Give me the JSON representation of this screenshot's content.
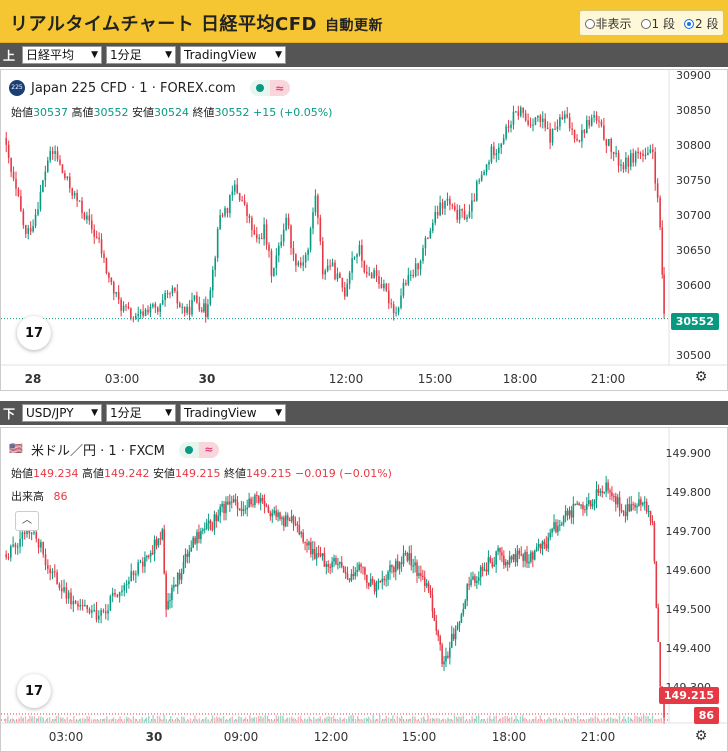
{
  "header": {
    "title": "リアルタイムチャート 日経平均CFD",
    "subtitle": "自動更新",
    "modes": [
      {
        "label": "非表示",
        "checked": false
      },
      {
        "label": "1 段",
        "checked": false
      },
      {
        "label": "2 段",
        "checked": true
      }
    ]
  },
  "panel1": {
    "toolbar": {
      "icon": "上",
      "symbol": "日経平均",
      "interval": "1分足",
      "provider": "TradingView"
    },
    "legend": {
      "badge": "225",
      "name": "Japan 225 CFD · 1 · FOREX.com"
    },
    "ohlc": {
      "open_label": "始値",
      "open": "30537",
      "high_label": "高値",
      "high": "30552",
      "low_label": "安値",
      "low": "30524",
      "close_label": "終値",
      "close": "30552",
      "change": "+15 (+0.05%)"
    },
    "last_price": "30552",
    "tv_logo": "17",
    "pill_icon": "≈",
    "colors": {
      "up": "#089981",
      "down": "#e53946"
    },
    "chart_data": {
      "type": "candlestick",
      "y_ticks": [
        "30900",
        "30850",
        "30800",
        "30750",
        "30700",
        "30650",
        "30600",
        "30550",
        "30500"
      ],
      "ylim": [
        30500,
        30900
      ],
      "x_ticks": [
        "28",
        "03:00",
        "30",
        "12:00",
        "15:00",
        "18:00",
        "21:00"
      ],
      "path": [
        [
          0,
          30810
        ],
        [
          2,
          30760
        ],
        [
          4,
          30720
        ],
        [
          6,
          30670
        ],
        [
          8,
          30690
        ],
        [
          10,
          30730
        ],
        [
          12,
          30780
        ],
        [
          14,
          30790
        ],
        [
          16,
          30760
        ],
        [
          18,
          30740
        ],
        [
          20,
          30720
        ],
        [
          22,
          30700
        ],
        [
          24,
          30680
        ],
        [
          26,
          30660
        ],
        [
          28,
          30620
        ],
        [
          30,
          30590
        ],
        [
          32,
          30570
        ],
        [
          34,
          30560
        ],
        [
          36,
          30550
        ],
        [
          38,
          30560
        ],
        [
          40,
          30570
        ],
        [
          42,
          30560
        ],
        [
          44,
          30580
        ],
        [
          46,
          30590
        ],
        [
          48,
          30570
        ],
        [
          50,
          30560
        ],
        [
          52,
          30580
        ],
        [
          54,
          30570
        ],
        [
          55,
          30560
        ],
        [
          57,
          30620
        ],
        [
          59,
          30700
        ],
        [
          61,
          30710
        ],
        [
          63,
          30740
        ],
        [
          65,
          30720
        ],
        [
          67,
          30690
        ],
        [
          69,
          30660
        ],
        [
          71,
          30680
        ],
        [
          73,
          30620
        ],
        [
          75,
          30650
        ],
        [
          77,
          30700
        ],
        [
          79,
          30640
        ],
        [
          81,
          30630
        ],
        [
          83,
          30650
        ],
        [
          85,
          30730
        ],
        [
          87,
          30620
        ],
        [
          89,
          30630
        ],
        [
          91,
          30610
        ],
        [
          93,
          30590
        ],
        [
          95,
          30640
        ],
        [
          97,
          30650
        ],
        [
          99,
          30610
        ],
        [
          101,
          30620
        ],
        [
          103,
          30600
        ],
        [
          105,
          30580
        ],
        [
          107,
          30560
        ],
        [
          109,
          30600
        ],
        [
          111,
          30610
        ],
        [
          113,
          30630
        ],
        [
          115,
          30660
        ],
        [
          117,
          30690
        ],
        [
          119,
          30710
        ],
        [
          121,
          30720
        ],
        [
          123,
          30700
        ],
        [
          125,
          30700
        ],
        [
          127,
          30700
        ],
        [
          129,
          30740
        ],
        [
          131,
          30760
        ],
        [
          133,
          30790
        ],
        [
          135,
          30800
        ],
        [
          137,
          30820
        ],
        [
          139,
          30840
        ],
        [
          141,
          30850
        ],
        [
          143,
          30830
        ],
        [
          145,
          30840
        ],
        [
          147,
          30830
        ],
        [
          149,
          30810
        ],
        [
          151,
          30830
        ],
        [
          153,
          30840
        ],
        [
          155,
          30820
        ],
        [
          157,
          30810
        ],
        [
          159,
          30830
        ],
        [
          161,
          30840
        ],
        [
          163,
          30820
        ],
        [
          165,
          30800
        ],
        [
          167,
          30780
        ],
        [
          169,
          30770
        ],
        [
          171,
          30780
        ],
        [
          173,
          30790
        ],
        [
          175,
          30780
        ],
        [
          177,
          30790
        ],
        [
          179,
          30680
        ],
        [
          180,
          30550
        ]
      ]
    }
  },
  "panel2": {
    "toolbar": {
      "icon": "下",
      "symbol": "USD/JPY",
      "interval": "1分足",
      "provider": "TradingView"
    },
    "legend": {
      "name": "米ドル／円 · 1 · FXCM"
    },
    "ohlc": {
      "open_label": "始値",
      "open": "149.234",
      "high_label": "高値",
      "high": "149.242",
      "low_label": "安値",
      "low": "149.215",
      "close_label": "終値",
      "close": "149.215",
      "change": "−0.019 (−0.01%)"
    },
    "volume": {
      "label": "出来高",
      "value": "86"
    },
    "last_price": "149.215",
    "last_volume": "86",
    "tv_logo": "17",
    "pill_icon": "≈",
    "chart_data": {
      "type": "candlestick",
      "y_ticks": [
        "149.900",
        "149.800",
        "149.700",
        "149.600",
        "149.500",
        "149.400",
        "149.300"
      ],
      "ylim": [
        149.22,
        149.92
      ],
      "x_ticks": [
        "03:00",
        "30",
        "09:00",
        "12:00",
        "15:00",
        "18:00",
        "21:00"
      ],
      "path": [
        [
          0,
          149.64
        ],
        [
          3,
          149.66
        ],
        [
          6,
          149.7
        ],
        [
          9,
          149.67
        ],
        [
          12,
          149.6
        ],
        [
          15,
          149.55
        ],
        [
          18,
          149.52
        ],
        [
          21,
          149.5
        ],
        [
          24,
          149.48
        ],
        [
          27,
          149.51
        ],
        [
          30,
          149.55
        ],
        [
          33,
          149.58
        ],
        [
          36,
          149.62
        ],
        [
          38,
          149.65
        ],
        [
          40,
          149.68
        ],
        [
          41,
          149.7
        ],
        [
          42,
          149.5
        ],
        [
          44,
          149.55
        ],
        [
          46,
          149.6
        ],
        [
          48,
          149.65
        ],
        [
          50,
          149.68
        ],
        [
          52,
          149.7
        ],
        [
          54,
          149.72
        ],
        [
          56,
          149.75
        ],
        [
          58,
          149.76
        ],
        [
          60,
          149.78
        ],
        [
          62,
          149.76
        ],
        [
          64,
          149.77
        ],
        [
          66,
          149.78
        ],
        [
          68,
          149.76
        ],
        [
          70,
          149.74
        ],
        [
          72,
          149.72
        ],
        [
          74,
          149.73
        ],
        [
          76,
          149.7
        ],
        [
          78,
          149.68
        ],
        [
          80,
          149.64
        ],
        [
          82,
          149.63
        ],
        [
          84,
          149.62
        ],
        [
          86,
          149.63
        ],
        [
          88,
          149.61
        ],
        [
          90,
          149.58
        ],
        [
          92,
          149.6
        ],
        [
          94,
          149.58
        ],
        [
          96,
          149.56
        ],
        [
          98,
          149.58
        ],
        [
          100,
          149.6
        ],
        [
          102,
          149.62
        ],
        [
          104,
          149.64
        ],
        [
          106,
          149.62
        ],
        [
          108,
          149.58
        ],
        [
          110,
          149.55
        ],
        [
          112,
          149.45
        ],
        [
          114,
          149.35
        ],
        [
          116,
          149.42
        ],
        [
          118,
          149.48
        ],
        [
          120,
          149.55
        ],
        [
          122,
          149.58
        ],
        [
          124,
          149.6
        ],
        [
          126,
          149.62
        ],
        [
          128,
          149.64
        ],
        [
          130,
          149.62
        ],
        [
          132,
          149.63
        ],
        [
          134,
          149.64
        ],
        [
          136,
          149.63
        ],
        [
          138,
          149.65
        ],
        [
          140,
          149.66
        ],
        [
          142,
          149.7
        ],
        [
          144,
          149.72
        ],
        [
          146,
          149.74
        ],
        [
          148,
          149.76
        ],
        [
          150,
          149.75
        ],
        [
          152,
          149.78
        ],
        [
          154,
          149.8
        ],
        [
          156,
          149.82
        ],
        [
          158,
          149.8
        ],
        [
          160,
          149.74
        ],
        [
          162,
          149.76
        ],
        [
          164,
          149.78
        ],
        [
          166,
          149.76
        ],
        [
          168,
          149.72
        ],
        [
          170,
          149.3
        ],
        [
          171,
          149.22
        ]
      ]
    }
  }
}
